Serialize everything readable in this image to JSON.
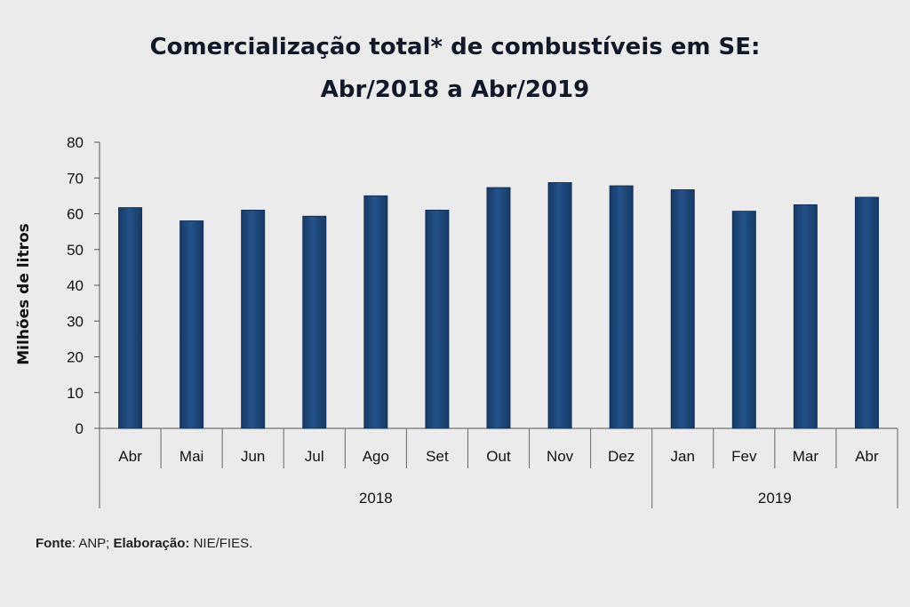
{
  "chart_data": {
    "type": "bar",
    "title_line1": "Comercialização total* de combustíveis em SE:",
    "title_line2": "Abr/2018 a Abr/2019",
    "ylabel": "Milhões de litros",
    "xlabel": "",
    "ylim": [
      0,
      80
    ],
    "yticks": [
      "0",
      "10",
      "20",
      "30",
      "40",
      "50",
      "60",
      "70",
      "80"
    ],
    "categories": [
      "Abr",
      "Mai",
      "Jun",
      "Jul",
      "Ago",
      "Set",
      "Out",
      "Nov",
      "Dez",
      "Jan",
      "Fev",
      "Mar",
      "Abr"
    ],
    "values": [
      61.7,
      58.0,
      61.0,
      59.3,
      65.0,
      61.0,
      67.3,
      68.7,
      67.8,
      66.7,
      60.7,
      62.5,
      64.6
    ],
    "year_groups": [
      {
        "label": "2018",
        "count": 9
      },
      {
        "label": "2019",
        "count": 4
      }
    ],
    "grid": false,
    "legend": "none",
    "bar_color": "#23528a",
    "bar_color_dark": "#163a66"
  },
  "footer": {
    "fonte_label": "Fonte",
    "fonte_value": ": ANP;",
    "elab_label": "Elaboração:",
    "elab_value": " NIE/FIES."
  }
}
